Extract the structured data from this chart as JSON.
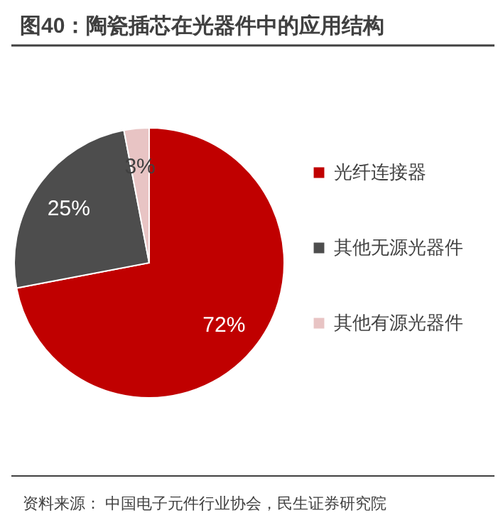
{
  "chart_data": {
    "type": "pie",
    "title": "图40：陶瓷插芯在光器件中的应用结构",
    "categories": [
      "光纤连接器",
      "其他无源光器件",
      "其他有源光器件"
    ],
    "values": [
      72,
      25,
      3
    ],
    "value_labels": [
      "72%",
      "25%",
      "3%"
    ],
    "colors": [
      "#c00000",
      "#4d4d4d",
      "#e8c4c4"
    ],
    "legend": "right",
    "annotations": [
      "资料来源：  中国电子元件行业协会，民生证券研究院"
    ]
  }
}
